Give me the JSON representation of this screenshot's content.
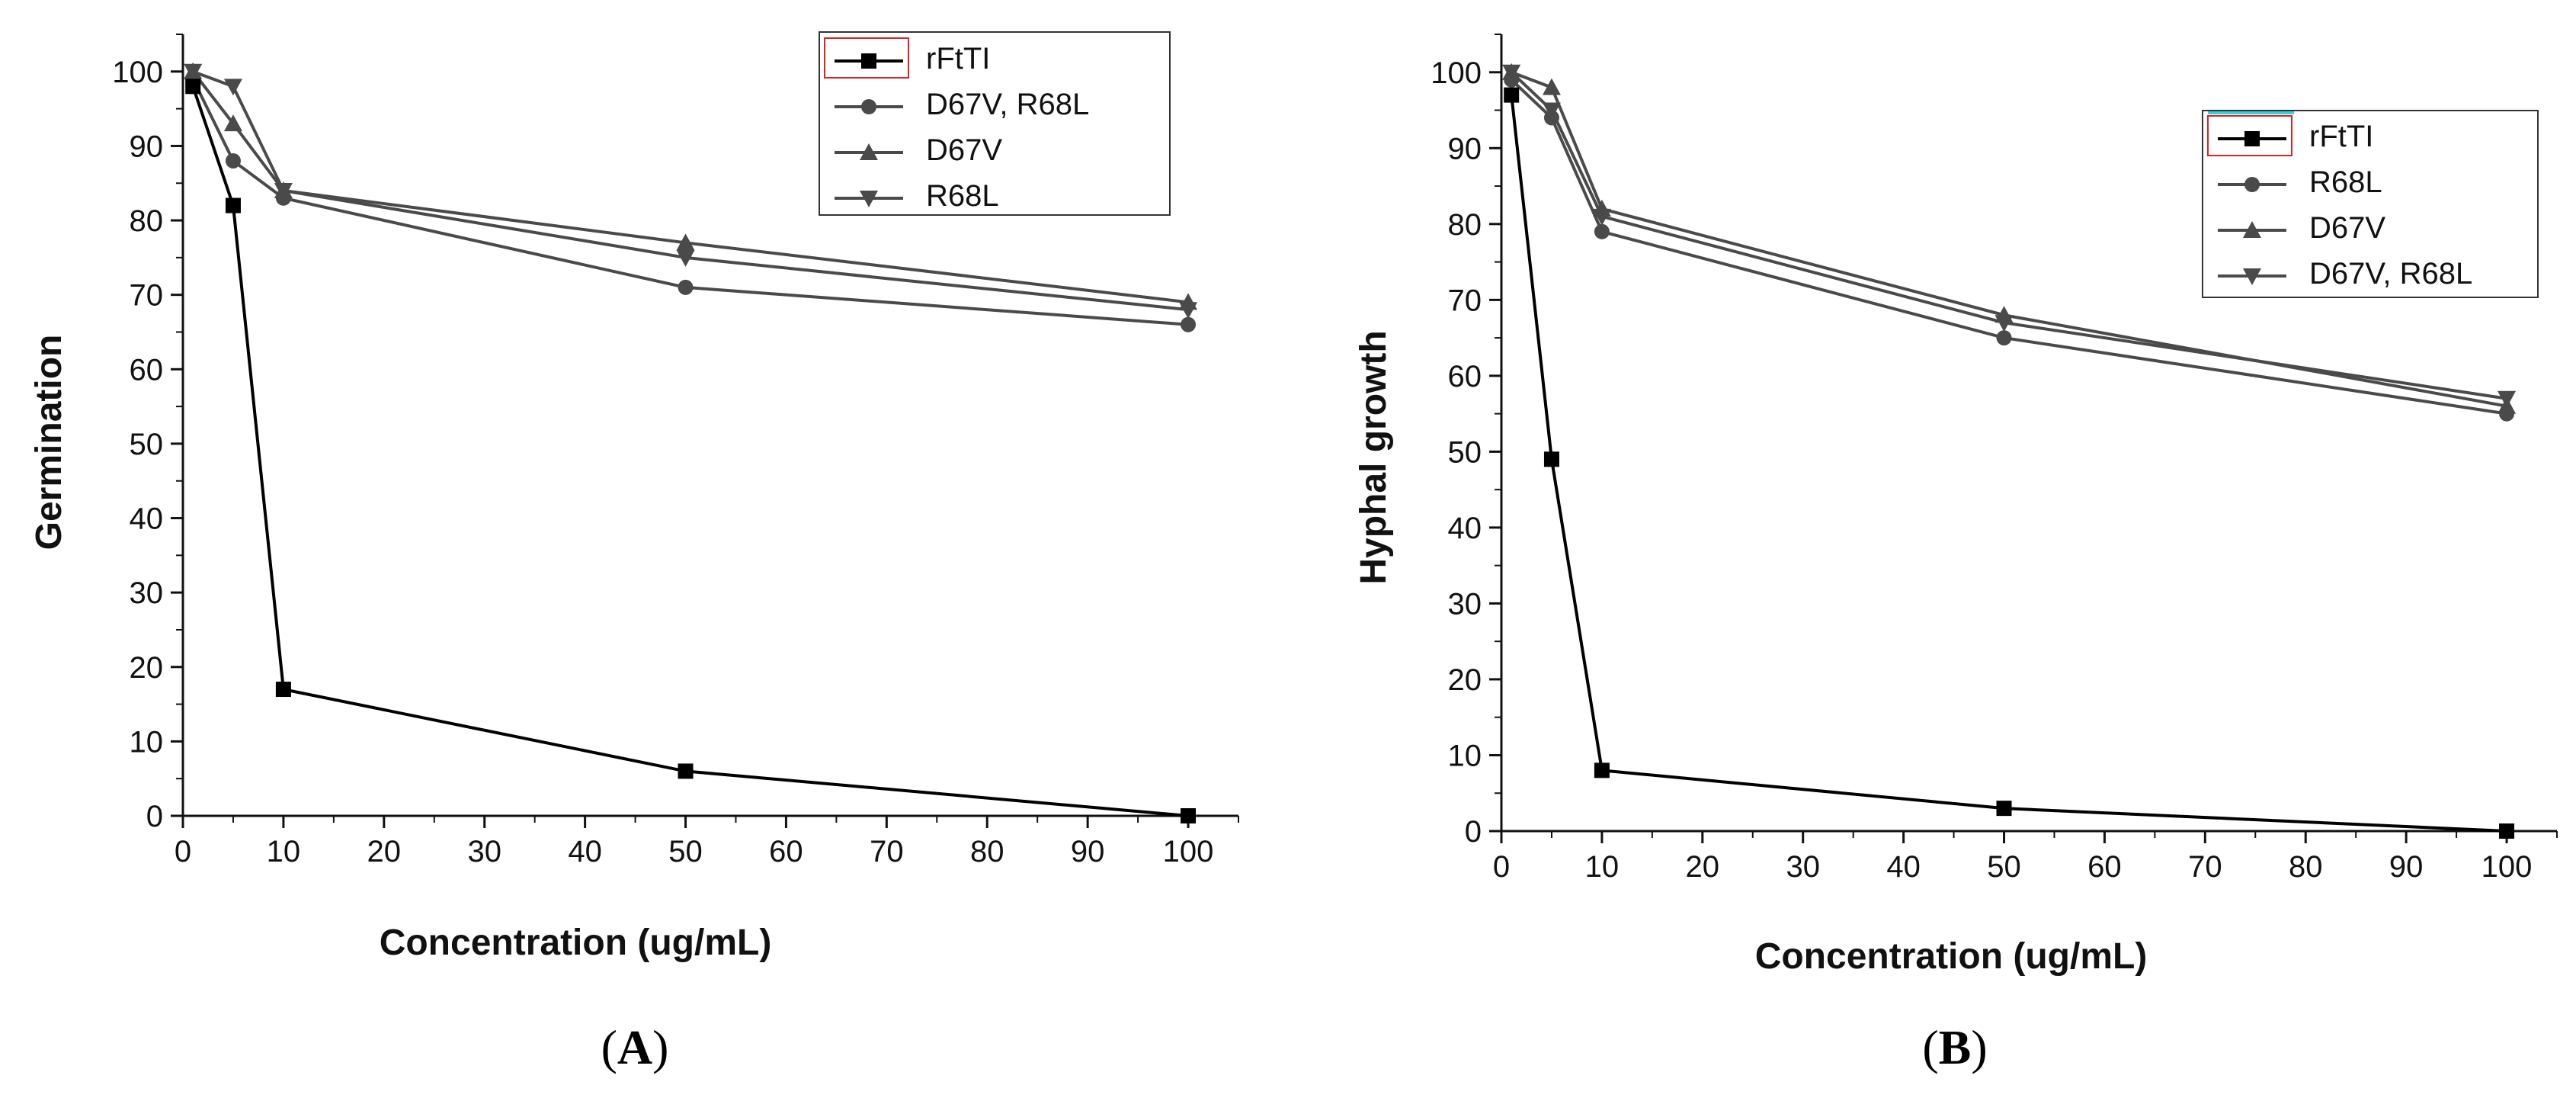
{
  "chart_data": [
    {
      "type": "line",
      "panel_label_open": "(",
      "panel_label_letter": "A",
      "panel_label_close": ")",
      "xlabel": "Concentration (ug/mL)",
      "ylabel": "Germination",
      "xlim": [
        0,
        105
      ],
      "ylim": [
        0,
        105
      ],
      "xticks": [
        0,
        10,
        20,
        30,
        40,
        50,
        60,
        70,
        80,
        90,
        100
      ],
      "yticks": [
        0,
        10,
        20,
        30,
        40,
        50,
        60,
        70,
        80,
        90,
        100
      ],
      "legend_position": "top-right",
      "series": [
        {
          "name": "rFtTI",
          "marker": "square",
          "color": "#000000",
          "x": [
            1,
            5,
            10,
            50,
            100
          ],
          "y": [
            98,
            82,
            17,
            6,
            0
          ]
        },
        {
          "name": "D67V, R68L",
          "marker": "circle",
          "color": "#4a4a4a",
          "x": [
            1,
            5,
            10,
            50,
            100
          ],
          "y": [
            99,
            88,
            83,
            71,
            66
          ]
        },
        {
          "name": "D67V",
          "marker": "triangle-up",
          "color": "#4a4a4a",
          "x": [
            1,
            5,
            10,
            50,
            100
          ],
          "y": [
            100,
            93,
            84,
            77,
            69
          ]
        },
        {
          "name": "R68L",
          "marker": "triangle-down",
          "color": "#4a4a4a",
          "x": [
            1,
            5,
            10,
            50,
            100
          ],
          "y": [
            100,
            98,
            84,
            75,
            68
          ]
        }
      ]
    },
    {
      "type": "line",
      "panel_label_open": "(",
      "panel_label_letter": "B",
      "panel_label_close": ")",
      "xlabel": "Concentration (ug/mL)",
      "ylabel": "Hyphal growth",
      "xlim": [
        0,
        105
      ],
      "ylim": [
        0,
        105
      ],
      "xticks": [
        0,
        10,
        20,
        30,
        40,
        50,
        60,
        70,
        80,
        90,
        100
      ],
      "yticks": [
        0,
        10,
        20,
        30,
        40,
        50,
        60,
        70,
        80,
        90,
        100
      ],
      "legend_position": "top-right",
      "series": [
        {
          "name": "rFtTI",
          "marker": "square",
          "color": "#000000",
          "x": [
            1,
            5,
            10,
            50,
            100
          ],
          "y": [
            97,
            49,
            8,
            3,
            0
          ]
        },
        {
          "name": "R68L",
          "marker": "circle",
          "color": "#4a4a4a",
          "x": [
            1,
            5,
            10,
            50,
            100
          ],
          "y": [
            99,
            94,
            79,
            65,
            55
          ]
        },
        {
          "name": "D67V",
          "marker": "triangle-up",
          "color": "#4a4a4a",
          "x": [
            1,
            5,
            10,
            50,
            100
          ],
          "y": [
            100,
            98,
            82,
            68,
            56
          ]
        },
        {
          "name": "D67V, R68L",
          "marker": "triangle-down",
          "color": "#4a4a4a",
          "x": [
            1,
            5,
            10,
            50,
            100
          ],
          "y": [
            100,
            95,
            81,
            67,
            57
          ]
        }
      ]
    }
  ]
}
